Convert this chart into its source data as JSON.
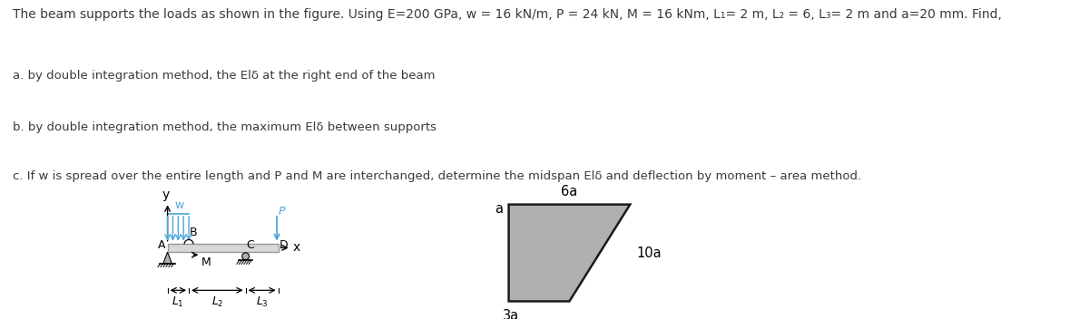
{
  "title_text": "The beam supports the loads as shown in the figure. Using E=200 GPa, w = 16 kN/m, P = 24 kN, M = 16 kNm, L₁= 2 m, L₂ = 6, L₃= 2 m and a=20 mm. Find,",
  "line_a": "a. by double integration method, the Elδ at the right end of the beam",
  "line_b": "b. by double integration method, the maximum Elδ between supports",
  "line_c": "c. If w is spread over the entire length and P and M are interchanged, determine the midspan Elδ and deflection by moment – area method.",
  "bg_color": "#ffffff",
  "text_color": "#3a3a3a",
  "beam_color": "#d8d8d8",
  "beam_edge_color": "#999999",
  "load_arrow_color": "#4da6d9",
  "support_color": "#b0b0b0",
  "trapezoid_fill": "#b0b0b0",
  "trapezoid_edge": "#1a1a1a",
  "title_fontsize": 10.0,
  "label_fontsize": 9.5,
  "diagram_fontsize": 9.0,
  "trap_fontsize": 10.5
}
